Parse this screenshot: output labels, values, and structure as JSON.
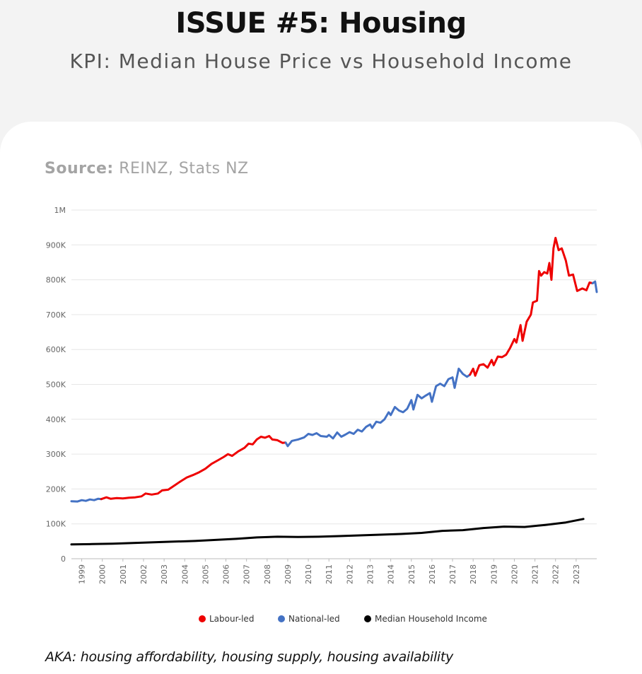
{
  "header": {
    "title": "ISSUE #5: Housing",
    "subtitle": "KPI: Median House Price vs Household Income"
  },
  "source": {
    "label": "Source:",
    "text": "REINZ, Stats NZ"
  },
  "footer": {
    "aka": "AKA: housing affordability, housing supply, housing availability"
  },
  "colors": {
    "labour": "#ee0000",
    "national": "#4472c4",
    "income": "#000000",
    "grid": "#e6e6e6",
    "tick": "#666666"
  },
  "chart_data": {
    "type": "line",
    "xlim": [
      1998.5,
      2024.0
    ],
    "ylim": [
      0,
      1000000
    ],
    "y_ticks": [
      0,
      100000,
      200000,
      300000,
      400000,
      500000,
      600000,
      700000,
      800000,
      900000,
      1000000
    ],
    "y_tick_labels": [
      "0",
      "100K",
      "200K",
      "300K",
      "400K",
      "500K",
      "600K",
      "700K",
      "800K",
      "900K",
      "1M"
    ],
    "x_tick_labels": [
      "1999",
      "2000",
      "2001",
      "2002",
      "2003",
      "2004",
      "2005",
      "2006",
      "2007",
      "2008",
      "2009",
      "2010",
      "2011",
      "2012",
      "2013",
      "2014",
      "2015",
      "2016",
      "2017",
      "2018",
      "2019",
      "2020",
      "2021",
      "2022",
      "2023"
    ],
    "grid": true,
    "legend_position": "bottom-center",
    "legend": [
      {
        "key": "labour",
        "label": "Labour-led"
      },
      {
        "key": "national",
        "label": "National-led"
      },
      {
        "key": "income",
        "label": "Median Household Income"
      }
    ],
    "series": [
      {
        "key": "national",
        "points": [
          [
            1998.5,
            165000
          ],
          [
            1998.8,
            164000
          ],
          [
            1999.0,
            168000
          ],
          [
            1999.2,
            166000
          ],
          [
            1999.4,
            170000
          ],
          [
            1999.6,
            168000
          ],
          [
            1999.8,
            172000
          ],
          [
            1999.95,
            171000
          ]
        ]
      },
      {
        "key": "labour",
        "points": [
          [
            1999.95,
            171000
          ],
          [
            2000.2,
            176000
          ],
          [
            2000.4,
            172000
          ],
          [
            2000.7,
            174000
          ],
          [
            2001.0,
            173000
          ],
          [
            2001.3,
            175000
          ],
          [
            2001.6,
            176000
          ],
          [
            2001.9,
            179000
          ],
          [
            2002.1,
            187000
          ],
          [
            2002.4,
            184000
          ],
          [
            2002.7,
            187000
          ],
          [
            2002.9,
            196000
          ],
          [
            2003.2,
            198000
          ],
          [
            2003.5,
            210000
          ],
          [
            2003.8,
            222000
          ],
          [
            2004.1,
            233000
          ],
          [
            2004.4,
            240000
          ],
          [
            2004.7,
            248000
          ],
          [
            2005.0,
            258000
          ],
          [
            2005.3,
            272000
          ],
          [
            2005.6,
            282000
          ],
          [
            2005.9,
            292000
          ],
          [
            2006.1,
            300000
          ],
          [
            2006.3,
            295000
          ],
          [
            2006.6,
            308000
          ],
          [
            2006.9,
            318000
          ],
          [
            2007.1,
            330000
          ],
          [
            2007.3,
            328000
          ],
          [
            2007.5,
            342000
          ],
          [
            2007.7,
            350000
          ],
          [
            2007.9,
            347000
          ],
          [
            2008.1,
            352000
          ],
          [
            2008.25,
            342000
          ],
          [
            2008.5,
            340000
          ],
          [
            2008.75,
            332000
          ],
          [
            2008.9,
            333000
          ]
        ]
      },
      {
        "key": "national",
        "points": [
          [
            2008.9,
            333000
          ],
          [
            2009.0,
            323000
          ],
          [
            2009.2,
            338000
          ],
          [
            2009.5,
            342000
          ],
          [
            2009.8,
            348000
          ],
          [
            2010.0,
            358000
          ],
          [
            2010.2,
            355000
          ],
          [
            2010.4,
            360000
          ],
          [
            2010.6,
            352000
          ],
          [
            2010.9,
            350000
          ],
          [
            2011.0,
            355000
          ],
          [
            2011.2,
            345000
          ],
          [
            2011.4,
            362000
          ],
          [
            2011.6,
            350000
          ],
          [
            2011.8,
            356000
          ],
          [
            2012.0,
            363000
          ],
          [
            2012.2,
            358000
          ],
          [
            2012.4,
            370000
          ],
          [
            2012.6,
            365000
          ],
          [
            2012.8,
            378000
          ],
          [
            2013.0,
            385000
          ],
          [
            2013.1,
            375000
          ],
          [
            2013.3,
            393000
          ],
          [
            2013.5,
            390000
          ],
          [
            2013.7,
            400000
          ],
          [
            2013.9,
            420000
          ],
          [
            2014.0,
            412000
          ],
          [
            2014.2,
            435000
          ],
          [
            2014.4,
            425000
          ],
          [
            2014.6,
            420000
          ],
          [
            2014.8,
            430000
          ],
          [
            2015.0,
            455000
          ],
          [
            2015.1,
            428000
          ],
          [
            2015.3,
            470000
          ],
          [
            2015.5,
            460000
          ],
          [
            2015.7,
            468000
          ],
          [
            2015.9,
            475000
          ],
          [
            2016.0,
            450000
          ],
          [
            2016.2,
            495000
          ],
          [
            2016.4,
            502000
          ],
          [
            2016.6,
            495000
          ],
          [
            2016.8,
            515000
          ],
          [
            2017.0,
            520000
          ],
          [
            2017.1,
            490000
          ],
          [
            2017.3,
            545000
          ],
          [
            2017.5,
            530000
          ],
          [
            2017.7,
            522000
          ],
          [
            2017.85,
            528000
          ]
        ]
      },
      {
        "key": "labour",
        "points": [
          [
            2017.85,
            528000
          ],
          [
            2018.0,
            545000
          ],
          [
            2018.1,
            525000
          ],
          [
            2018.3,
            555000
          ],
          [
            2018.5,
            558000
          ],
          [
            2018.7,
            548000
          ],
          [
            2018.9,
            570000
          ],
          [
            2019.0,
            555000
          ],
          [
            2019.2,
            580000
          ],
          [
            2019.4,
            578000
          ],
          [
            2019.6,
            585000
          ],
          [
            2019.8,
            605000
          ],
          [
            2020.0,
            630000
          ],
          [
            2020.1,
            620000
          ],
          [
            2020.3,
            670000
          ],
          [
            2020.4,
            625000
          ],
          [
            2020.6,
            680000
          ],
          [
            2020.8,
            700000
          ],
          [
            2020.9,
            735000
          ],
          [
            2021.1,
            740000
          ],
          [
            2021.2,
            825000
          ],
          [
            2021.3,
            812000
          ],
          [
            2021.45,
            822000
          ],
          [
            2021.6,
            818000
          ],
          [
            2021.7,
            848000
          ],
          [
            2021.8,
            800000
          ],
          [
            2021.9,
            890000
          ],
          [
            2022.0,
            920000
          ],
          [
            2022.15,
            885000
          ],
          [
            2022.3,
            890000
          ],
          [
            2022.5,
            855000
          ],
          [
            2022.65,
            812000
          ],
          [
            2022.85,
            815000
          ],
          [
            2023.05,
            768000
          ],
          [
            2023.3,
            775000
          ],
          [
            2023.5,
            770000
          ],
          [
            2023.65,
            792000
          ],
          [
            2023.8,
            790000
          ]
        ]
      },
      {
        "key": "national",
        "points": [
          [
            2023.8,
            790000
          ],
          [
            2023.92,
            795000
          ],
          [
            2024.0,
            765000
          ]
        ]
      },
      {
        "key": "income",
        "points": [
          [
            1998.5,
            41000
          ],
          [
            1999.5,
            42000
          ],
          [
            2000.5,
            43000
          ],
          [
            2001.5,
            45000
          ],
          [
            2002.5,
            47000
          ],
          [
            2003.5,
            49000
          ],
          [
            2004.5,
            51000
          ],
          [
            2005.5,
            54000
          ],
          [
            2006.5,
            57000
          ],
          [
            2007.5,
            61000
          ],
          [
            2008.5,
            63000
          ],
          [
            2009.5,
            62500
          ],
          [
            2010.5,
            63000
          ],
          [
            2011.5,
            65000
          ],
          [
            2012.5,
            67000
          ],
          [
            2013.5,
            69000
          ],
          [
            2014.5,
            71000
          ],
          [
            2015.5,
            74000
          ],
          [
            2016.5,
            80000
          ],
          [
            2017.5,
            82000
          ],
          [
            2018.5,
            88000
          ],
          [
            2019.5,
            92000
          ],
          [
            2020.5,
            91000
          ],
          [
            2021.5,
            97000
          ],
          [
            2022.5,
            104000
          ],
          [
            2023.35,
            114000
          ]
        ]
      }
    ]
  }
}
